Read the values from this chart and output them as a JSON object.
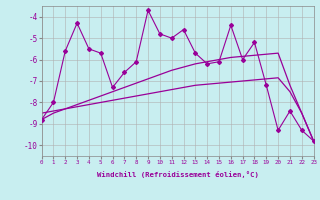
{
  "xlabel": "Windchill (Refroidissement éolien,°C)",
  "xlim": [
    0,
    23
  ],
  "ylim": [
    -10.5,
    -3.5
  ],
  "yticks": [
    -10,
    -9,
    -8,
    -7,
    -6,
    -5,
    -4
  ],
  "xticks": [
    0,
    1,
    2,
    3,
    4,
    5,
    6,
    7,
    8,
    9,
    10,
    11,
    12,
    13,
    14,
    15,
    16,
    17,
    18,
    19,
    20,
    21,
    22,
    23
  ],
  "bg_color": "#c8eef0",
  "line_color": "#990099",
  "grid_color": "#b0b0b0",
  "jagged_y": [
    -8.8,
    -8.0,
    -5.6,
    -4.3,
    -5.5,
    -5.7,
    -7.3,
    -6.6,
    -6.1,
    -3.7,
    -4.8,
    -5.0,
    -4.6,
    -5.7,
    -6.2,
    -6.1,
    -4.4,
    -6.0,
    -5.2,
    -7.2,
    -9.3,
    -8.4,
    -9.3,
    -9.8
  ],
  "trend_up_y": [
    -8.8,
    -8.5,
    -8.3,
    -8.1,
    -7.9,
    -7.7,
    -7.5,
    -7.3,
    -7.1,
    -6.9,
    -6.7,
    -6.5,
    -6.35,
    -6.2,
    -6.1,
    -6.0,
    -5.9,
    -5.85,
    -5.8,
    -5.75,
    -5.7,
    -7.2,
    -8.5,
    -9.8
  ],
  "trend_flat_y": [
    -8.5,
    -8.4,
    -8.3,
    -8.2,
    -8.1,
    -8.0,
    -7.9,
    -7.8,
    -7.7,
    -7.6,
    -7.5,
    -7.4,
    -7.3,
    -7.2,
    -7.15,
    -7.1,
    -7.05,
    -7.0,
    -6.95,
    -6.9,
    -6.85,
    -7.5,
    -8.5,
    -9.8
  ]
}
